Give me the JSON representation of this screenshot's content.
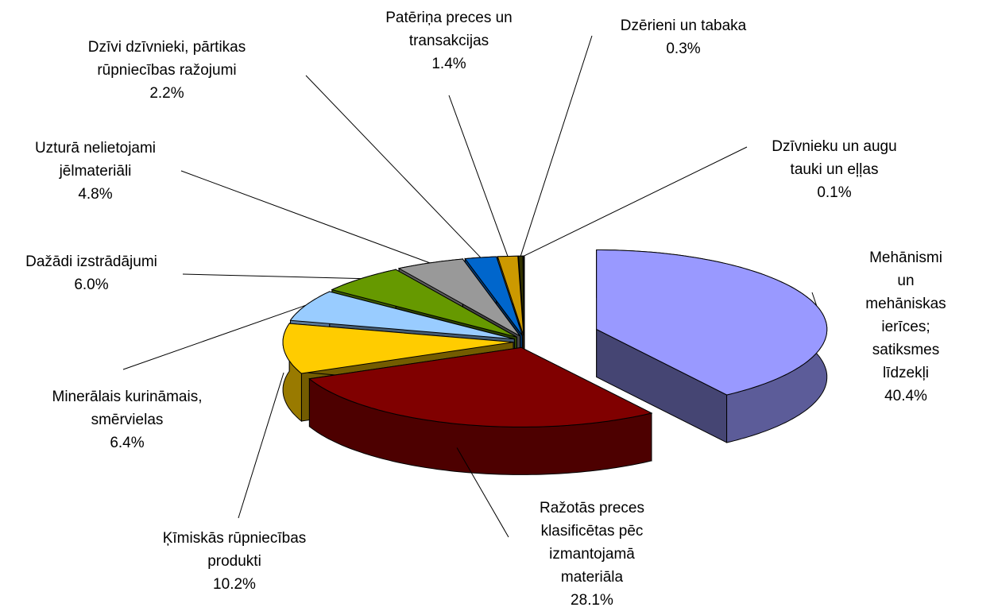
{
  "chart_data": {
    "type": "pie3d",
    "categories": [
      "Mehānismi un\nmehāniskas ierīces;\nsatiksmes līdzekļi",
      "Ražotās preces\nklasificētas pēc\nizmantojamā\nmateriāla",
      "Ķīmiskās rūpniecības\nprodukti",
      "Minerālais kurināmais,\nsmērvielas",
      "Dažādi izstrādājumi",
      "Uzturā nelietojami\njēlmateriāli",
      "Dzīvi dzīvnieki, pārtikas\nrūpniecības ražojumi",
      "Patēriņa preces un\ntransakcijas",
      "Dzērieni un tabaka",
      "Dzīvnieku un augu\ntauki un eļļas"
    ],
    "values": [
      40.4,
      28.1,
      10.2,
      6.4,
      6.0,
      4.8,
      2.2,
      1.4,
      0.3,
      0.1
    ],
    "value_labels": [
      "40.4%",
      "28.1%",
      "10.2%",
      "6.4%",
      "6.0%",
      "4.8%",
      "2.2%",
      "1.4%",
      "0.3%",
      "0.1%"
    ],
    "colors": [
      "#9999ff",
      "#800000",
      "#ffcc00",
      "#99ccff",
      "#669900",
      "#999999",
      "#0066cc",
      "#cc9900",
      "#333300",
      "#000000"
    ]
  }
}
